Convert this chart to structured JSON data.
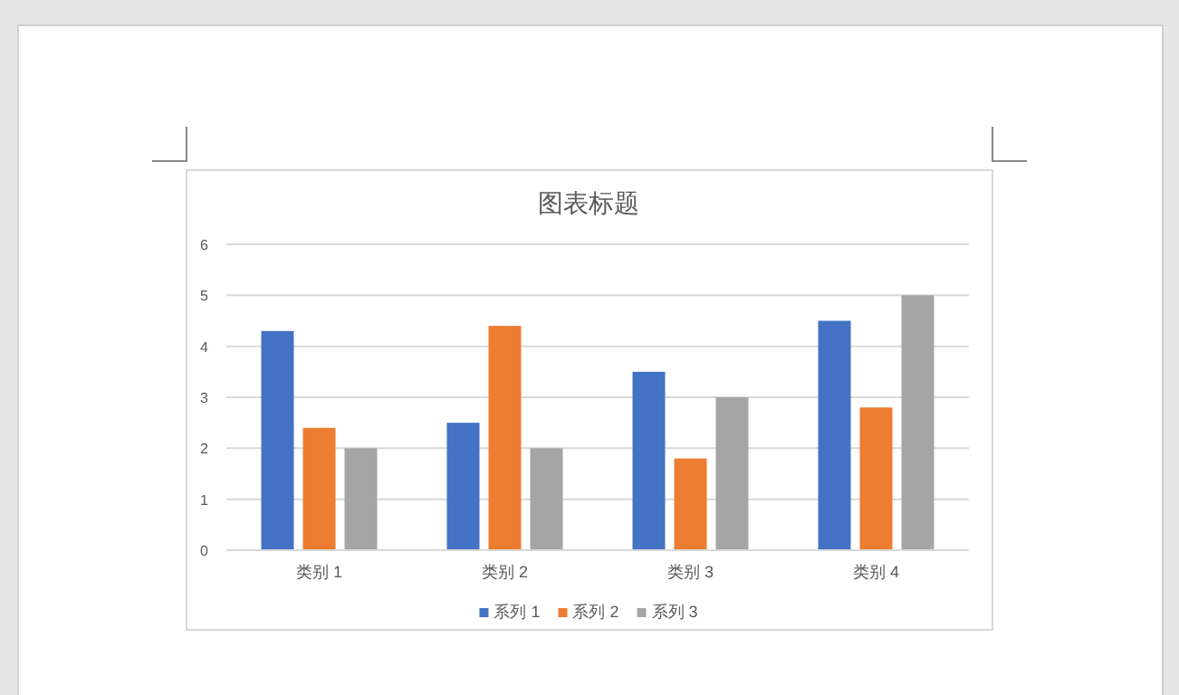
{
  "chart_data": {
    "type": "bar",
    "title": "图表标题",
    "categories": [
      "类别 1",
      "类别 2",
      "类别 3",
      "类别 4"
    ],
    "series": [
      {
        "name": "系列 1",
        "color": "#4472c4",
        "values": [
          4.3,
          2.5,
          3.5,
          4.5
        ]
      },
      {
        "name": "系列 2",
        "color": "#ed7d31",
        "values": [
          2.4,
          4.4,
          1.8,
          2.8
        ]
      },
      {
        "name": "系列 3",
        "color": "#a5a5a5",
        "values": [
          2,
          2,
          3,
          5
        ]
      }
    ],
    "ylim": [
      0,
      6
    ],
    "yticks": [
      0,
      1,
      2,
      3,
      4,
      5,
      6
    ],
    "grid": "y",
    "legend": "bottom"
  }
}
